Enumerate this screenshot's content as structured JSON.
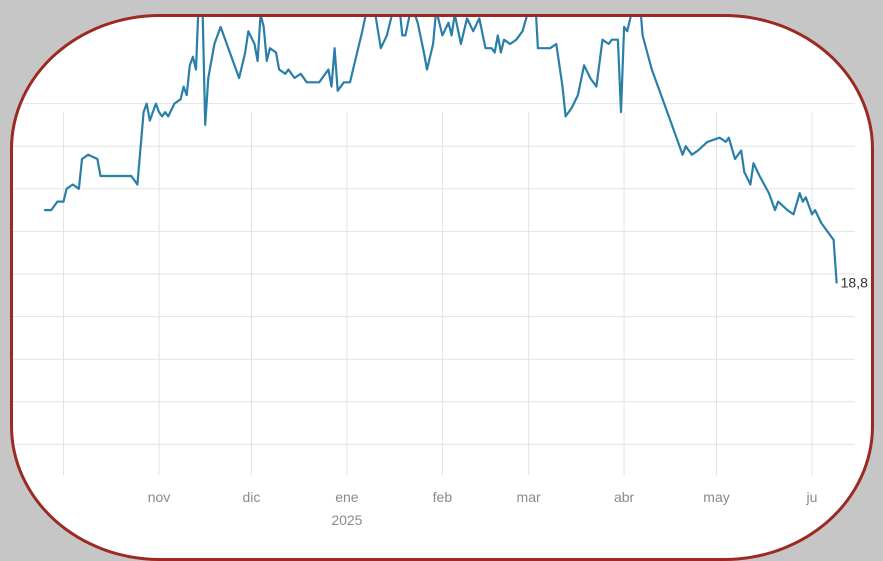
{
  "chart_data": {
    "type": "line",
    "title": "",
    "xlabel": "",
    "ylabel": "",
    "grid": true,
    "x_ticks": [
      {
        "label": "nov",
        "sub": ""
      },
      {
        "label": "dic",
        "sub": ""
      },
      {
        "label": "ene",
        "sub": "2025"
      },
      {
        "label": "feb",
        "sub": ""
      },
      {
        "label": "mar",
        "sub": ""
      },
      {
        "label": "abr",
        "sub": ""
      },
      {
        "label": "may",
        "sub": ""
      },
      {
        "label": "ju",
        "sub": ""
      }
    ],
    "last_value_label": "18,8",
    "series": [
      {
        "color": "#2a7fa8",
        "values": [
          [
            "2024-09-25",
            20.5
          ],
          [
            "2024-09-27",
            20.5
          ],
          [
            "2024-09-29",
            20.7
          ],
          [
            "2024-10-01",
            20.7
          ],
          [
            "2024-10-02",
            21.0
          ],
          [
            "2024-10-04",
            21.1
          ],
          [
            "2024-10-06",
            21.0
          ],
          [
            "2024-10-07",
            21.7
          ],
          [
            "2024-10-09",
            21.8
          ],
          [
            "2024-10-12",
            21.7
          ],
          [
            "2024-10-13",
            21.3
          ],
          [
            "2024-10-20",
            21.3
          ],
          [
            "2024-10-23",
            21.3
          ],
          [
            "2024-10-25",
            21.1
          ],
          [
            "2024-10-27",
            22.8
          ],
          [
            "2024-10-28",
            23.0
          ],
          [
            "2024-10-29",
            22.6
          ],
          [
            "2024-10-31",
            23.0
          ],
          [
            "2024-11-01",
            22.8
          ],
          [
            "2024-11-02",
            22.7
          ],
          [
            "2024-11-03",
            22.8
          ],
          [
            "2024-11-04",
            22.7
          ],
          [
            "2024-11-06",
            23.0
          ],
          [
            "2024-11-08",
            23.1
          ],
          [
            "2024-11-09",
            23.4
          ],
          [
            "2024-11-10",
            23.2
          ],
          [
            "2024-11-11",
            23.9
          ],
          [
            "2024-11-12",
            24.1
          ],
          [
            "2024-11-13",
            23.8
          ],
          [
            "2024-11-14",
            25.6
          ],
          [
            "2024-11-15",
            25.7
          ],
          [
            "2024-11-16",
            22.5
          ],
          [
            "2024-11-17",
            23.6
          ],
          [
            "2024-11-19",
            24.4
          ],
          [
            "2024-11-21",
            24.8
          ],
          [
            "2024-11-23",
            24.4
          ],
          [
            "2024-11-25",
            24.0
          ],
          [
            "2024-11-27",
            23.6
          ],
          [
            "2024-11-29",
            24.2
          ],
          [
            "2024-11-30",
            24.7
          ],
          [
            "2024-12-02",
            24.4
          ],
          [
            "2024-12-03",
            24.0
          ],
          [
            "2024-12-04",
            25.1
          ],
          [
            "2024-12-05",
            24.8
          ],
          [
            "2024-12-06",
            24.0
          ],
          [
            "2024-12-07",
            24.3
          ],
          [
            "2024-12-09",
            24.2
          ],
          [
            "2024-12-10",
            23.8
          ],
          [
            "2024-12-12",
            23.7
          ],
          [
            "2024-12-13",
            23.8
          ],
          [
            "2024-12-15",
            23.6
          ],
          [
            "2024-12-17",
            23.7
          ],
          [
            "2024-12-19",
            23.5
          ],
          [
            "2024-12-23",
            23.5
          ],
          [
            "2024-12-25",
            23.7
          ],
          [
            "2024-12-26",
            23.8
          ],
          [
            "2024-12-27",
            23.4
          ],
          [
            "2024-12-28",
            24.3
          ],
          [
            "2024-12-29",
            23.3
          ],
          [
            "2024-12-31",
            23.5
          ],
          [
            "2025-01-02",
            23.5
          ],
          [
            "2025-01-04",
            24.1
          ],
          [
            "2025-01-06",
            24.7
          ],
          [
            "2025-01-08",
            25.4
          ],
          [
            "2025-01-10",
            25.2
          ],
          [
            "2025-01-12",
            24.3
          ],
          [
            "2025-01-14",
            24.6
          ],
          [
            "2025-01-16",
            25.2
          ],
          [
            "2025-01-18",
            25.3
          ],
          [
            "2025-01-19",
            24.6
          ],
          [
            "2025-01-20",
            24.6
          ],
          [
            "2025-01-22",
            25.3
          ],
          [
            "2025-01-24",
            24.9
          ],
          [
            "2025-01-26",
            24.2
          ],
          [
            "2025-01-27",
            23.8
          ],
          [
            "2025-01-29",
            24.4
          ],
          [
            "2025-01-30",
            25.2
          ],
          [
            "2025-02-01",
            24.6
          ],
          [
            "2025-02-03",
            24.9
          ],
          [
            "2025-02-04",
            24.6
          ],
          [
            "2025-02-05",
            25.1
          ],
          [
            "2025-02-07",
            24.4
          ],
          [
            "2025-02-09",
            25.0
          ],
          [
            "2025-02-11",
            24.7
          ],
          [
            "2025-02-13",
            25.0
          ],
          [
            "2025-02-15",
            24.3
          ],
          [
            "2025-02-17",
            24.3
          ],
          [
            "2025-02-18",
            24.2
          ],
          [
            "2025-02-19",
            24.6
          ],
          [
            "2025-02-20",
            24.2
          ],
          [
            "2025-02-21",
            24.5
          ],
          [
            "2025-02-23",
            24.4
          ],
          [
            "2025-02-25",
            24.5
          ],
          [
            "2025-02-27",
            24.7
          ],
          [
            "2025-03-01",
            25.2
          ],
          [
            "2025-03-03",
            25.6
          ],
          [
            "2025-03-04",
            24.3
          ],
          [
            "2025-03-06",
            24.3
          ],
          [
            "2025-03-08",
            24.3
          ],
          [
            "2025-03-10",
            24.4
          ],
          [
            "2025-03-12",
            23.4
          ],
          [
            "2025-03-13",
            22.7
          ],
          [
            "2025-03-15",
            22.9
          ],
          [
            "2025-03-17",
            23.2
          ],
          [
            "2025-03-19",
            23.9
          ],
          [
            "2025-03-21",
            23.6
          ],
          [
            "2025-03-23",
            23.4
          ],
          [
            "2025-03-25",
            24.5
          ],
          [
            "2025-03-27",
            24.4
          ],
          [
            "2025-03-28",
            24.5
          ],
          [
            "2025-03-30",
            24.5
          ],
          [
            "2025-03-31",
            22.8
          ],
          [
            "2025-04-01",
            24.8
          ],
          [
            "2025-04-02",
            24.7
          ],
          [
            "2025-04-04",
            25.3
          ],
          [
            "2025-04-06",
            25.5
          ],
          [
            "2025-04-07",
            24.6
          ],
          [
            "2025-04-10",
            23.8
          ],
          [
            "2025-04-14",
            23.0
          ],
          [
            "2025-04-18",
            22.2
          ],
          [
            "2025-04-20",
            21.8
          ],
          [
            "2025-04-21",
            22.0
          ],
          [
            "2025-04-23",
            21.8
          ],
          [
            "2025-04-25",
            21.9
          ],
          [
            "2025-04-28",
            22.1
          ],
          [
            "2025-05-02",
            22.2
          ],
          [
            "2025-05-04",
            22.1
          ],
          [
            "2025-05-05",
            22.2
          ],
          [
            "2025-05-07",
            21.7
          ],
          [
            "2025-05-09",
            21.9
          ],
          [
            "2025-05-10",
            21.4
          ],
          [
            "2025-05-12",
            21.1
          ],
          [
            "2025-05-13",
            21.6
          ],
          [
            "2025-05-15",
            21.3
          ],
          [
            "2025-05-18",
            20.9
          ],
          [
            "2025-05-20",
            20.5
          ],
          [
            "2025-05-21",
            20.7
          ],
          [
            "2025-05-24",
            20.5
          ],
          [
            "2025-05-26",
            20.4
          ],
          [
            "2025-05-28",
            20.9
          ],
          [
            "2025-05-29",
            20.7
          ],
          [
            "2025-05-30",
            20.8
          ],
          [
            "2025-06-01",
            20.4
          ],
          [
            "2025-06-02",
            20.5
          ],
          [
            "2025-06-04",
            20.2
          ],
          [
            "2025-06-06",
            20.0
          ],
          [
            "2025-06-08",
            19.8
          ],
          [
            "2025-06-09",
            18.8
          ]
        ]
      }
    ]
  }
}
